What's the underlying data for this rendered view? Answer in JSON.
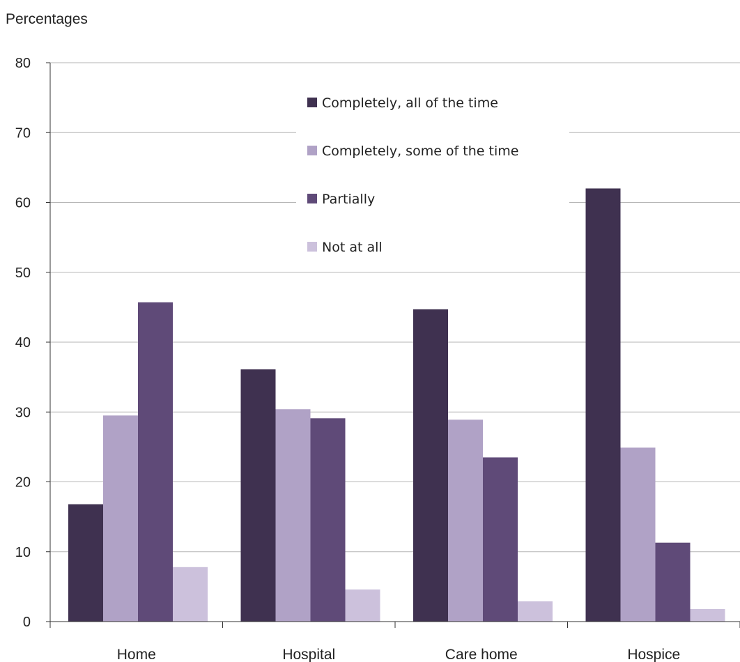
{
  "chart_data": {
    "type": "bar",
    "ylabel": "Percentages",
    "ylim": [
      0,
      80
    ],
    "yticks": [
      "0",
      "10",
      "20",
      "30",
      "40",
      "50",
      "60",
      "70",
      "80"
    ],
    "categories": [
      "Home",
      "Hospital",
      "Care home",
      "Hospice"
    ],
    "series": [
      {
        "name": "Completely, all of the time",
        "color": "#3f3150",
        "values": [
          16.8,
          36.1,
          44.7,
          62.0
        ]
      },
      {
        "name": "Completely, some of the time",
        "color": "#b0a2c6",
        "values": [
          29.5,
          30.4,
          28.9,
          24.9
        ]
      },
      {
        "name": "Partially",
        "color": "#5f4a78",
        "values": [
          45.7,
          29.1,
          23.5,
          11.3
        ]
      },
      {
        "name": "Not at all",
        "color": "#ccc1dc",
        "values": [
          7.8,
          4.6,
          2.9,
          1.8
        ]
      }
    ],
    "grid": true,
    "legend_position": "top-center"
  }
}
